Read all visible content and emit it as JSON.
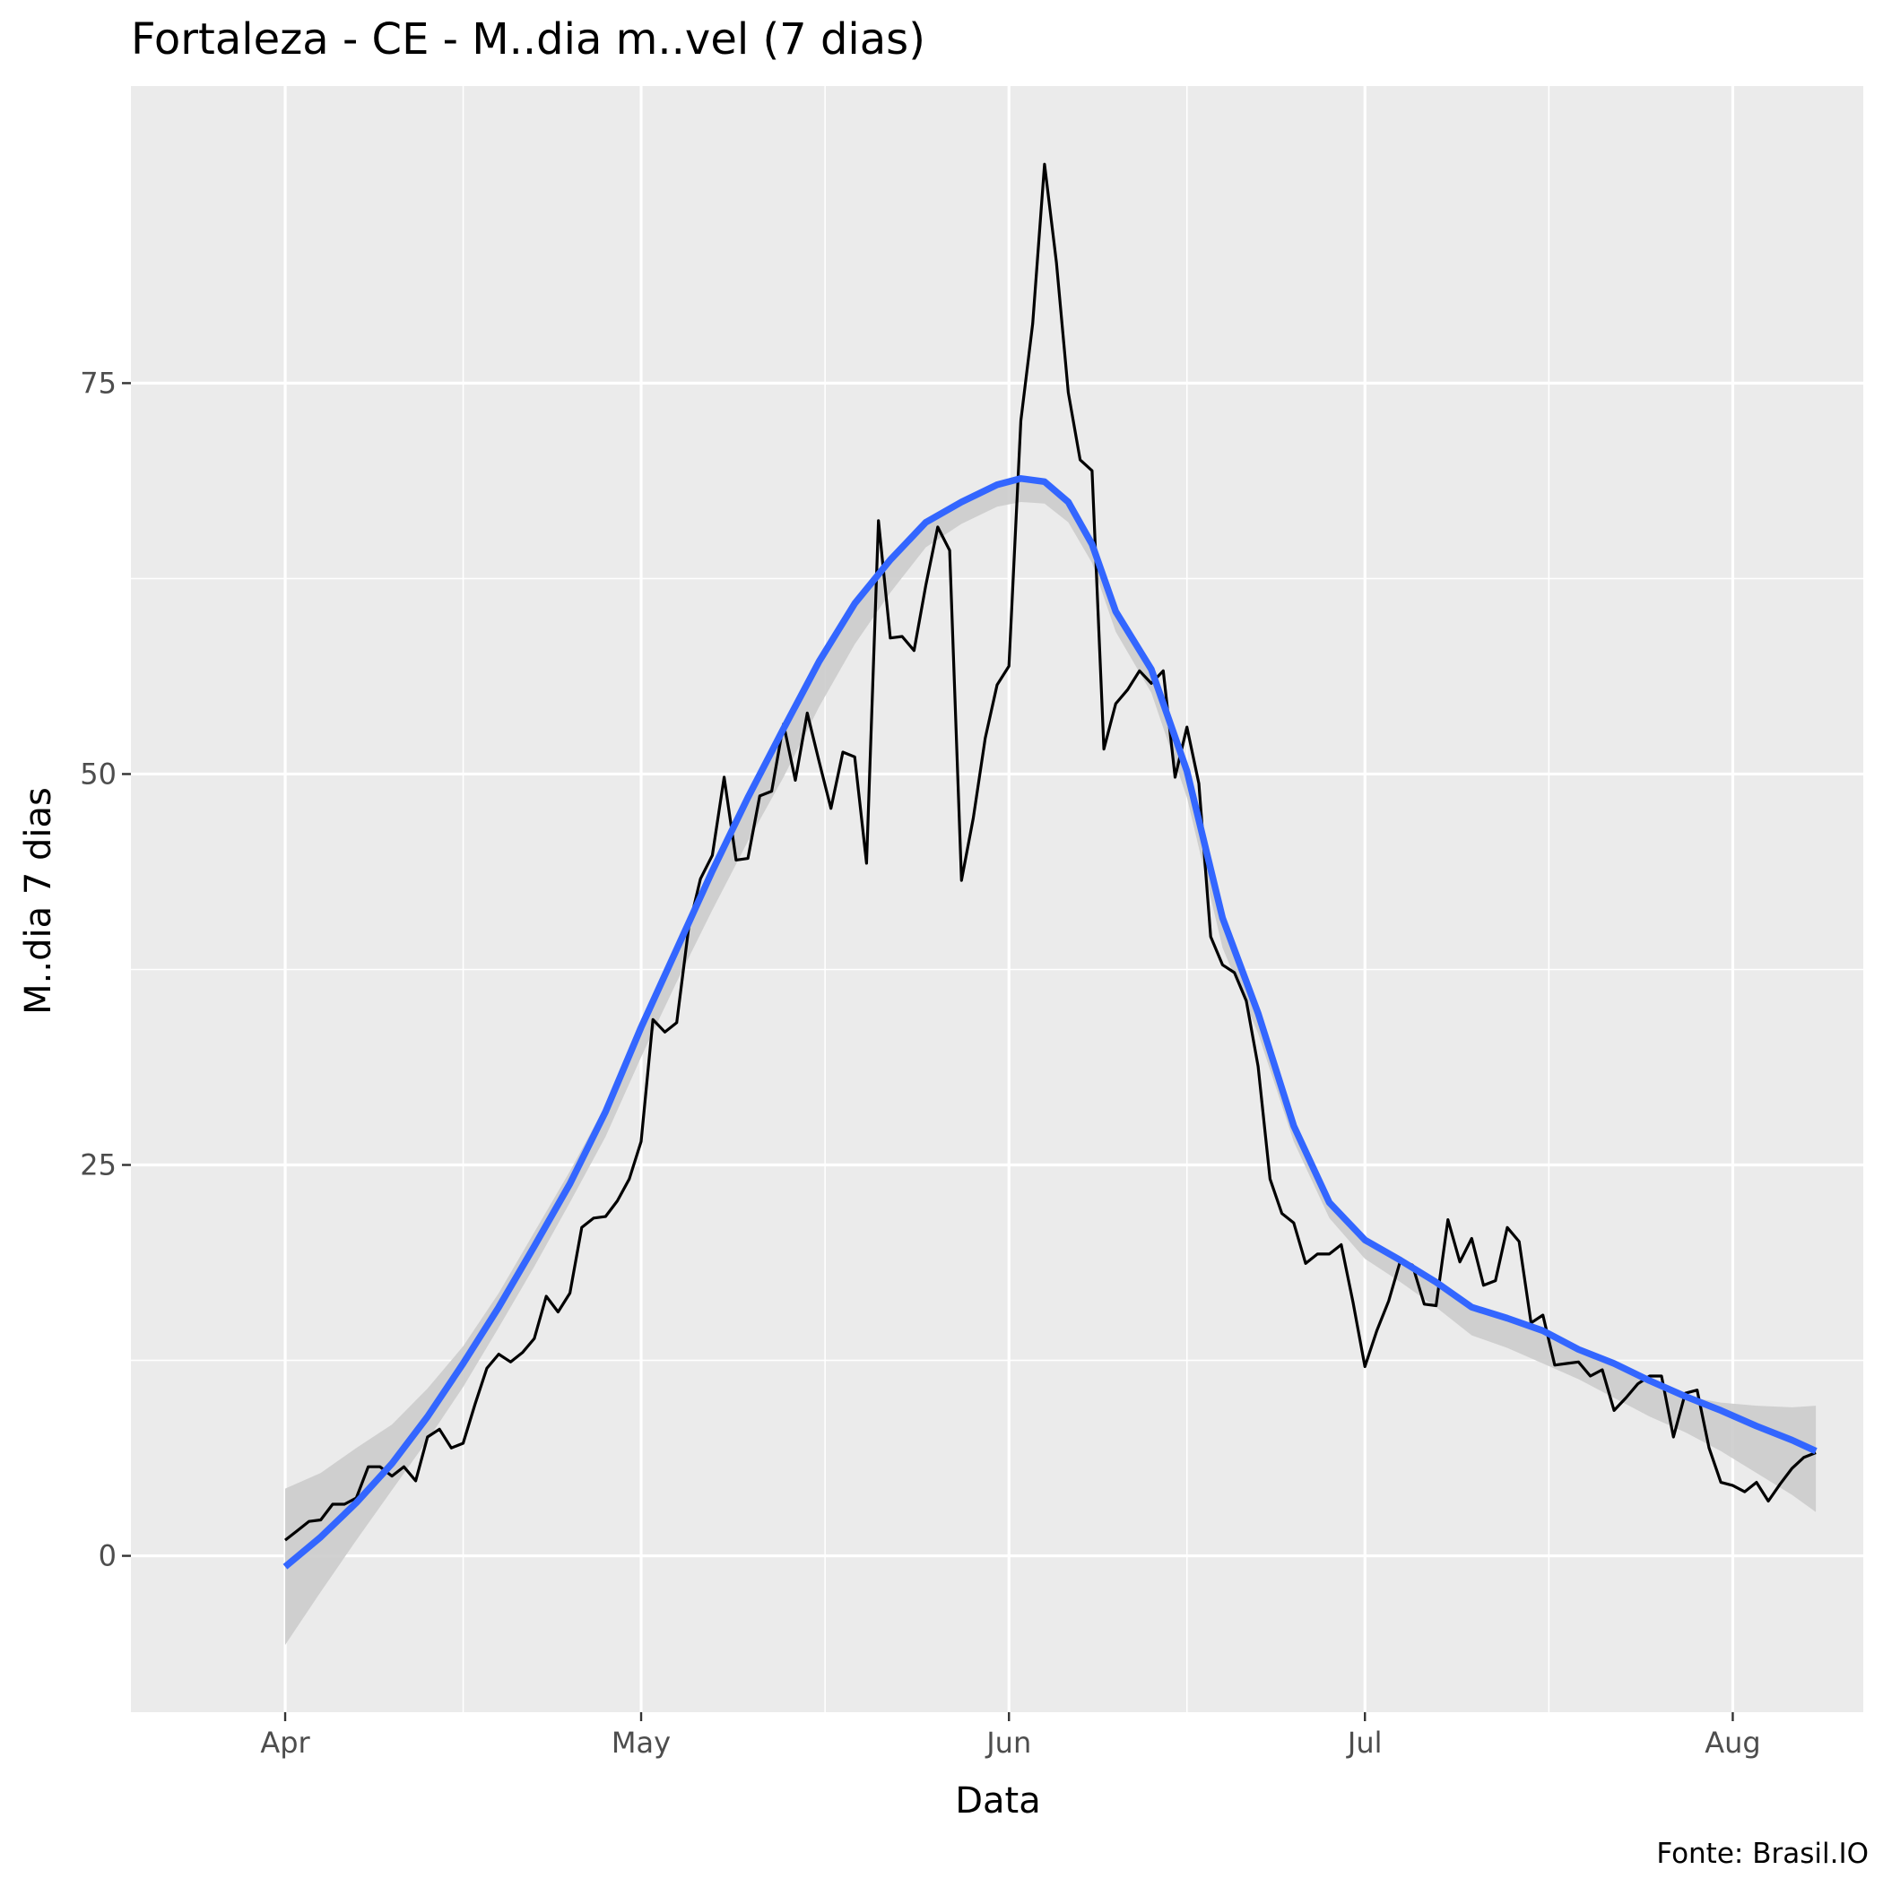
{
  "chart_data": {
    "type": "line",
    "title": "Fortaleza - CE - M..dia m..vel (7 dias)",
    "xlabel": "Data",
    "ylabel": "M..dia 7 dias",
    "caption": "Fonte: Brasil.IO",
    "x_ticks": [
      {
        "label": "Apr",
        "day": 0
      },
      {
        "label": "May",
        "day": 30
      },
      {
        "label": "Jun",
        "day": 61
      },
      {
        "label": "Jul",
        "day": 91
      },
      {
        "label": "Aug",
        "day": 122
      }
    ],
    "x_minor_days": [
      15,
      45.5,
      76,
      106.5
    ],
    "y_ticks": [
      0,
      25,
      50,
      75
    ],
    "y_minor": [
      12.5,
      37.5,
      62.5
    ],
    "xlim_days": [
      -13,
      133
    ],
    "ylim": [
      -10,
      94
    ],
    "background": "#ebebeb",
    "grid": true,
    "series": [
      {
        "kind": "moving_average",
        "color": "#000000",
        "x_start": "Apr 1",
        "values": [
          1,
          1.6,
          2.2,
          2.3,
          3.3,
          3.3,
          3.7,
          5.7,
          5.7,
          5.1,
          5.7,
          4.8,
          7.6,
          8.1,
          6.9,
          7.2,
          9.7,
          12,
          12.9,
          12.4,
          13,
          13.9,
          16.6,
          15.6,
          16.8,
          21,
          21.6,
          21.7,
          22.7,
          24.1,
          26.5,
          34.3,
          33.5,
          34.1,
          40.1,
          43.3,
          44.8,
          49.8,
          44.5,
          44.6,
          48.6,
          48.9,
          53.2,
          49.6,
          53.9,
          50.8,
          47.8,
          51.4,
          51.1,
          44.3,
          66.2,
          58.7,
          58.8,
          57.9,
          62.1,
          65.8,
          64.3,
          43.2,
          47.2,
          52.3,
          55.7,
          56.9,
          72.6,
          78.8,
          89,
          82.7,
          74.4,
          70.1,
          69.4,
          51.6,
          54.5,
          55.4,
          56.6,
          55.8,
          56.6,
          49.8,
          53,
          49.4,
          39.6,
          37.8,
          37.3,
          35.5,
          31.3,
          24.1,
          21.9,
          21.3,
          18.7,
          19.3,
          19.3,
          19.9,
          16.2,
          12.1,
          14.4,
          16.3,
          18.9,
          18.6,
          16.1,
          16,
          21.5,
          18.8,
          20.3,
          17.3,
          17.6,
          21,
          20.1,
          14.9,
          15.4,
          12.2,
          12.3,
          12.4,
          11.5,
          11.9,
          9.3,
          10.1,
          11,
          11.5,
          11.5,
          7.6,
          10.4,
          10.6,
          6.9,
          4.7,
          4.5,
          4.1,
          4.7,
          3.5,
          4.6,
          5.6,
          6.3,
          6.6
        ]
      },
      {
        "kind": "smooth",
        "color": "#3366ff",
        "band_color": "#cccccc",
        "days": [
          0,
          3,
          6,
          9,
          12,
          15,
          18,
          21,
          24,
          27,
          30,
          33,
          36,
          39,
          42,
          45,
          48,
          51,
          54,
          57,
          60,
          62,
          64,
          66,
          68,
          70,
          73,
          76,
          79,
          82,
          85,
          88,
          91,
          94,
          97,
          100,
          103,
          106,
          109,
          112,
          115,
          118,
          121,
          124,
          127,
          129
        ],
        "fit": [
          -0.7,
          1.2,
          3.4,
          5.9,
          8.9,
          12.3,
          15.9,
          19.8,
          23.8,
          28.4,
          33.8,
          38.8,
          43.8,
          48.5,
          52.9,
          57.2,
          60.9,
          63.7,
          66.1,
          67.4,
          68.5,
          68.9,
          68.7,
          67.4,
          64.7,
          60.4,
          56.7,
          50.2,
          40.8,
          34.7,
          27.5,
          22.6,
          20.2,
          18.9,
          17.5,
          15.9,
          15.2,
          14.4,
          13.2,
          12.3,
          11.2,
          10.2,
          9.3,
          8.3,
          7.4,
          6.7
        ],
        "lower": [
          -5.7,
          -2.3,
          1.0,
          4.2,
          7.4,
          10.8,
          14.6,
          18.5,
          22.6,
          26.8,
          31.9,
          36.7,
          41.3,
          45.7,
          49.8,
          54.3,
          58.3,
          61.6,
          64.5,
          66.0,
          67.1,
          67.4,
          67.3,
          66.1,
          63.5,
          59.1,
          55.2,
          48.5,
          38.9,
          33.4,
          26.5,
          21.6,
          19.0,
          17.5,
          15.9,
          14.1,
          13.3,
          12.3,
          11.3,
          10.1,
          8.9,
          7.9,
          6.7,
          5.3,
          3.9,
          2.8
        ],
        "upper": [
          4.3,
          5.3,
          6.9,
          8.4,
          10.7,
          13.4,
          16.8,
          20.7,
          24.6,
          28.8,
          33.8,
          38.8,
          43.8,
          48.5,
          52.9,
          57.2,
          60.9,
          63.7,
          66.1,
          67.4,
          68.5,
          68.9,
          68.7,
          67.4,
          64.7,
          60.4,
          56.7,
          50.2,
          40.8,
          34.7,
          27.5,
          22.6,
          20.2,
          18.9,
          17.5,
          15.9,
          15.2,
          14.4,
          13.2,
          12.3,
          11.2,
          10.2,
          9.8,
          9.6,
          9.5,
          9.6
        ]
      }
    ]
  }
}
